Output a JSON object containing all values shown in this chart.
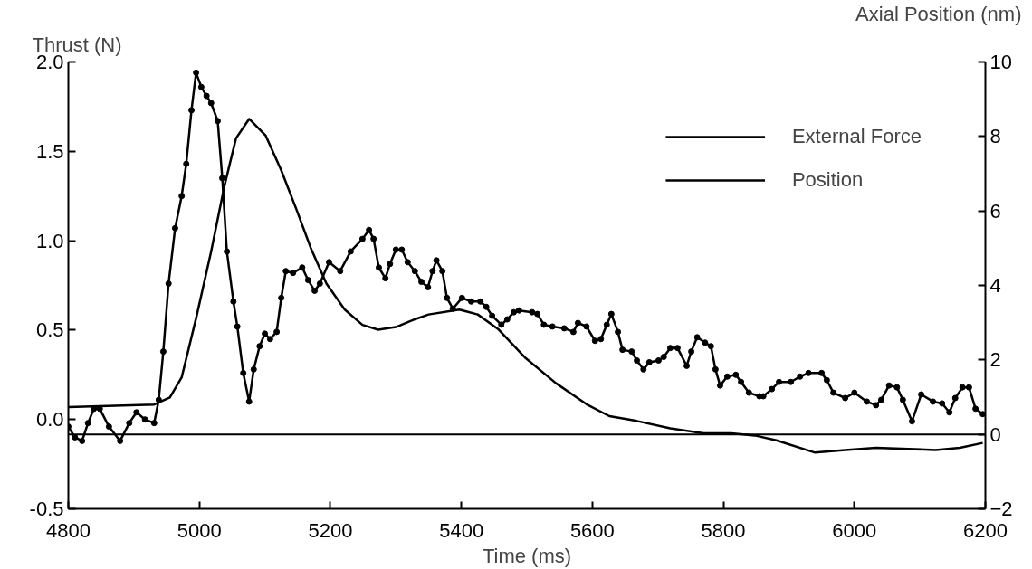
{
  "chart_data": {
    "type": "line",
    "xlabel": "Time (ms)",
    "ylabel": "Thrust (N)",
    "y2label": "Axial Position (nm)",
    "xlim": [
      4800,
      6200
    ],
    "xticks": [
      4800,
      5000,
      5200,
      5400,
      5600,
      5800,
      6000,
      6200
    ],
    "ylim": [
      -0.5,
      2.0
    ],
    "yticks": [
      {
        "value": -0.5,
        "label": "-0.5"
      },
      {
        "value": 0,
        "label": "0.0"
      },
      {
        "value": 0.5,
        "label": "0.5"
      },
      {
        "value": 1.0,
        "label": "1.0"
      },
      {
        "value": 1.5,
        "label": "1.5"
      },
      {
        "value": 2.0,
        "label": "2.0"
      }
    ],
    "y2lim": [
      -2,
      10
    ],
    "y2ticks": [
      -2,
      0,
      2,
      4,
      6,
      8,
      10
    ],
    "grid": false,
    "legend": "top right",
    "ref_lines": [
      {
        "axis": "y2",
        "value": 0,
        "color": "#000000"
      }
    ],
    "series": [
      {
        "name": "External Force",
        "color": "#000000",
        "marker": "circle",
        "x": [
          4800,
          4810,
          4821,
          4830,
          4839,
          4848,
          4862,
          4879,
          4893,
          4904,
          4917,
          4931,
          4938,
          4945,
          4953,
          4963,
          4973,
          4980,
          4988,
          4995,
          5003,
          5011,
          5018,
          5028,
          5035,
          5042,
          5052,
          5058,
          5067,
          5076,
          5083,
          5092,
          5100,
          5108,
          5118,
          5125,
          5132,
          5143,
          5157,
          5166,
          5176,
          5184,
          5198,
          5215,
          5231,
          5249,
          5259,
          5266,
          5274,
          5284,
          5291,
          5300,
          5309,
          5318,
          5329,
          5339,
          5349,
          5356,
          5362,
          5371,
          5378,
          5387,
          5401,
          5415,
          5429,
          5438,
          5447,
          5461,
          5470,
          5480,
          5488,
          5508,
          5516,
          5526,
          5539,
          5557,
          5571,
          5578,
          5591,
          5604,
          5613,
          5622,
          5629,
          5639,
          5646,
          5660,
          5668,
          5678,
          5687,
          5701,
          5709,
          5719,
          5730,
          5744,
          5751,
          5760,
          5772,
          5781,
          5788,
          5795,
          5806,
          5819,
          5827,
          5839,
          5855,
          5861,
          5874,
          5885,
          5903,
          5917,
          5930,
          5950,
          5958,
          5968,
          5986,
          6000,
          6019,
          6033,
          6041,
          6053,
          6065,
          6074,
          6088,
          6102,
          6120,
          6134,
          6145,
          6154,
          6165,
          6175,
          6185,
          6196
        ],
        "values": [
          -0.04,
          -0.1,
          -0.12,
          -0.02,
          0.06,
          0.06,
          -0.04,
          -0.12,
          -0.02,
          0.04,
          0.0,
          -0.02,
          0.11,
          0.38,
          0.76,
          1.07,
          1.25,
          1.43,
          1.73,
          1.94,
          1.86,
          1.81,
          1.77,
          1.67,
          1.35,
          0.94,
          0.66,
          0.52,
          0.26,
          0.1,
          0.28,
          0.41,
          0.48,
          0.45,
          0.49,
          0.68,
          0.83,
          0.82,
          0.85,
          0.78,
          0.72,
          0.76,
          0.88,
          0.83,
          0.94,
          1.01,
          1.06,
          1.01,
          0.85,
          0.79,
          0.87,
          0.95,
          0.95,
          0.88,
          0.83,
          0.77,
          0.74,
          0.83,
          0.89,
          0.83,
          0.68,
          0.62,
          0.68,
          0.66,
          0.66,
          0.63,
          0.58,
          0.53,
          0.56,
          0.6,
          0.61,
          0.6,
          0.59,
          0.53,
          0.52,
          0.51,
          0.49,
          0.54,
          0.52,
          0.44,
          0.45,
          0.53,
          0.59,
          0.49,
          0.39,
          0.38,
          0.33,
          0.28,
          0.32,
          0.33,
          0.35,
          0.4,
          0.4,
          0.3,
          0.38,
          0.46,
          0.43,
          0.41,
          0.28,
          0.19,
          0.24,
          0.25,
          0.21,
          0.15,
          0.13,
          0.13,
          0.17,
          0.21,
          0.21,
          0.24,
          0.26,
          0.26,
          0.22,
          0.15,
          0.12,
          0.15,
          0.1,
          0.08,
          0.11,
          0.19,
          0.18,
          0.11,
          -0.01,
          0.14,
          0.1,
          0.09,
          0.04,
          0.12,
          0.18,
          0.18,
          0.06,
          0.03
        ]
      },
      {
        "name": "Position",
        "color": "#000000",
        "marker": "none",
        "axis": "y2",
        "x": [
          4800,
          4931,
          4955,
          4973,
          4996,
          5018,
          5038,
          5056,
          5076,
          5101,
          5125,
          5148,
          5170,
          5194,
          5222,
          5249,
          5273,
          5300,
          5329,
          5350,
          5397,
          5425,
          5456,
          5498,
          5544,
          5591,
          5626,
          5668,
          5719,
          5770,
          5812,
          5848,
          5881,
          5940,
          5986,
          6033,
          6124,
          6161,
          6196
        ],
        "values": [
          0.73,
          0.8,
          0.99,
          1.53,
          3.19,
          4.91,
          6.65,
          7.95,
          8.47,
          8.03,
          7.09,
          6.05,
          5.01,
          4.05,
          3.35,
          2.94,
          2.81,
          2.88,
          3.09,
          3.22,
          3.35,
          3.22,
          2.83,
          2.05,
          1.38,
          0.81,
          0.49,
          0.36,
          0.16,
          0.03,
          0.03,
          -0.03,
          -0.16,
          -0.49,
          -0.42,
          -0.36,
          -0.42,
          -0.36,
          -0.23
        ]
      }
    ]
  }
}
